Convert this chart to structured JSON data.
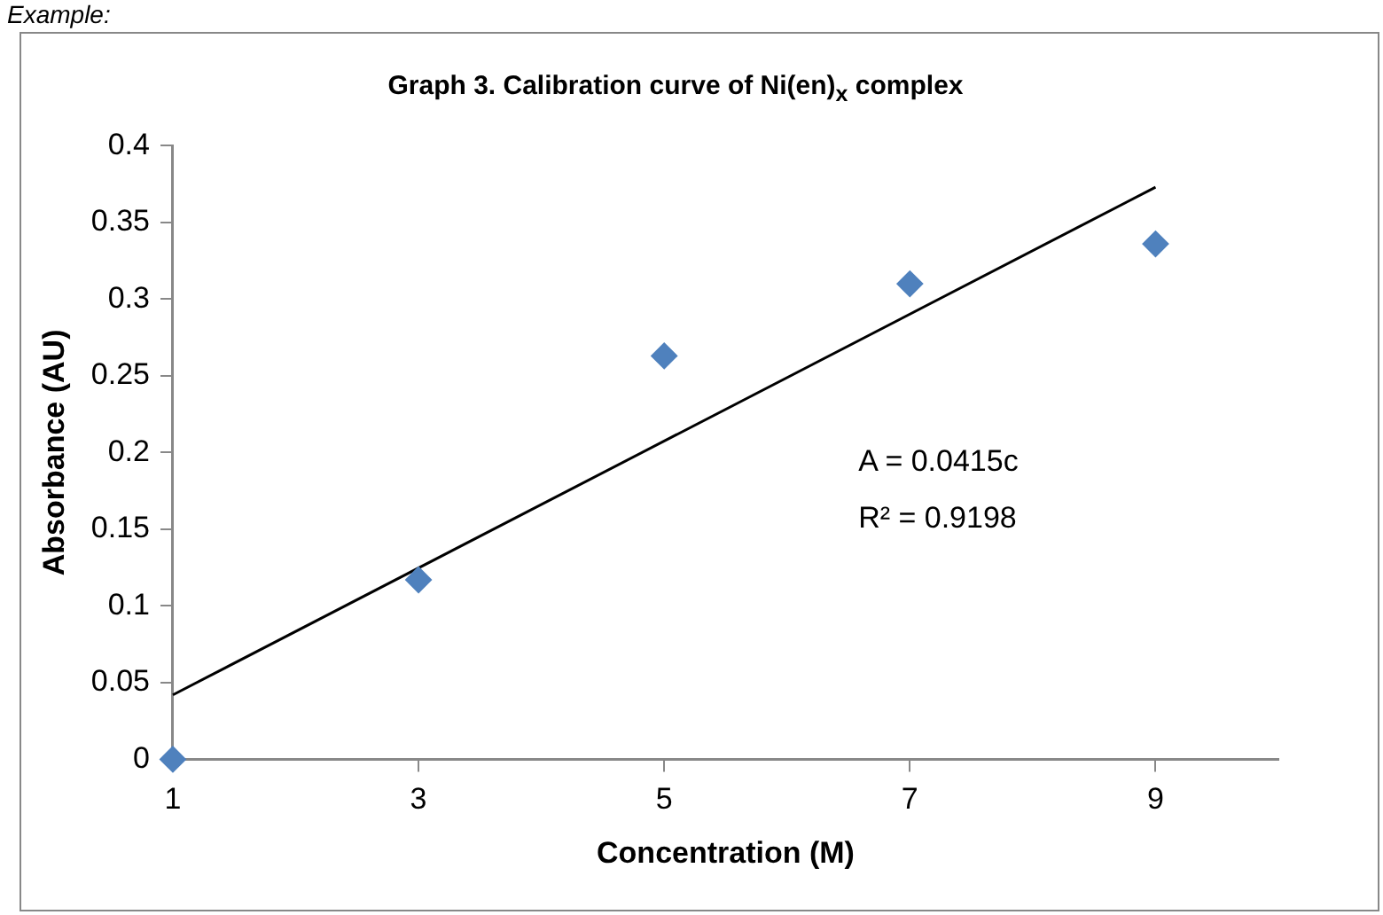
{
  "chart_data": {
    "type": "scatter",
    "title": "Graph 3. Calibration curve of Ni(en)$_{x}$ complex",
    "xlabel": "Concentration (M)",
    "ylabel": "Absorbance (AU)",
    "annotations": [
      "Example:",
      "A = 0.0415c",
      "R² = 0.9198"
    ],
    "x": [
      1,
      3,
      5,
      7,
      9
    ],
    "series": [
      {
        "color": "#4f81bd",
        "values": [
          0,
          0.117,
          0.263,
          0.31,
          0.336
        ],
        "marker": "diamond"
      },
      {
        "type": "line",
        "color": "#000000",
        "x": [
          1,
          9
        ],
        "values": [
          0.042,
          0.373
        ],
        "marker": "none"
      }
    ],
    "xlim": [
      1,
      10
    ],
    "xticks": [
      1,
      3,
      5,
      7,
      9
    ],
    "ylim": [
      0,
      0.4
    ],
    "yticks": [
      0,
      0.05,
      0.1,
      0.15,
      0.2,
      0.25,
      0.3,
      0.35,
      0.4
    ],
    "grid": false,
    "legend": false
  }
}
